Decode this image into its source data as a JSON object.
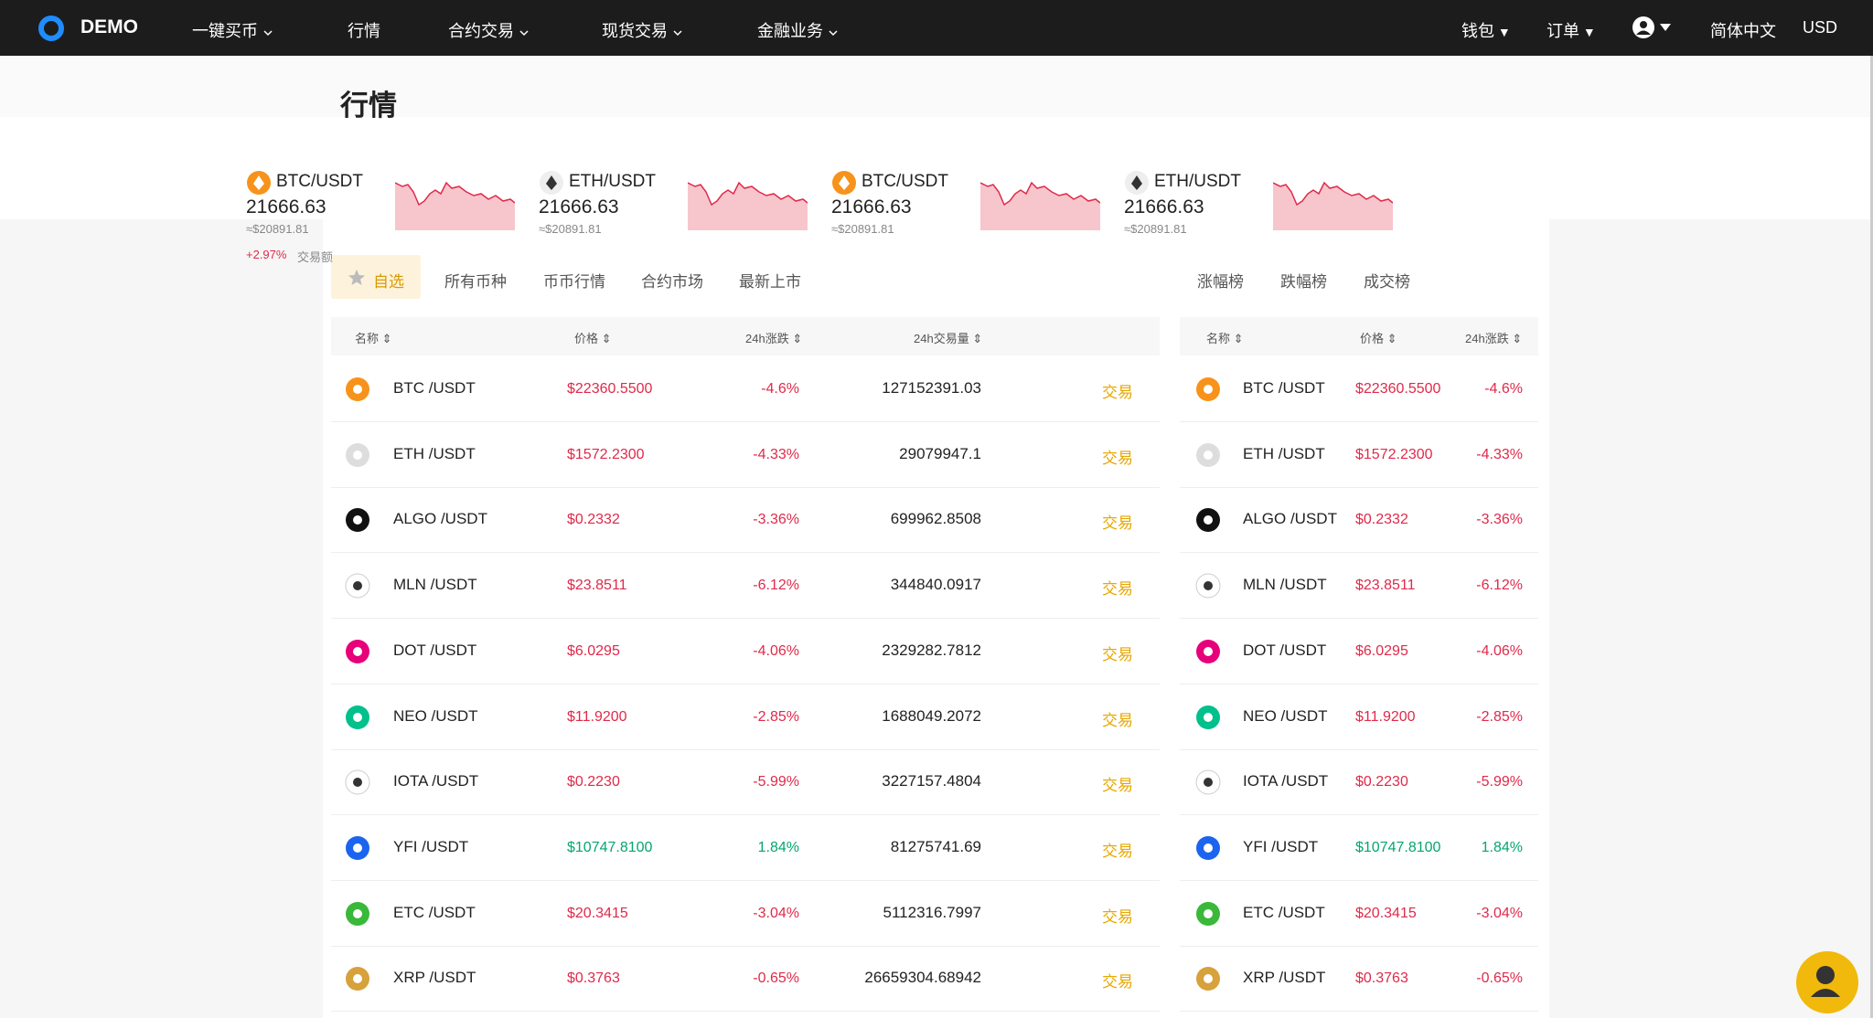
{
  "nav": {
    "logo": "DEMO",
    "items": [
      "一键买币",
      "行情",
      "合约交易",
      "现货交易",
      "金融业务"
    ],
    "right": [
      "钱包",
      "订单",
      "简体中文",
      "USD"
    ]
  },
  "page_title": "行情",
  "tickers": [
    {
      "pair": "BTC/USDT",
      "price": "21666.63",
      "usd": "≈$20891.81",
      "change": "+2.97%",
      "vol_label": "交易额"
    },
    {
      "pair": "ETH/USDT",
      "price": "21666.63",
      "usd": "≈$20891.81"
    },
    {
      "pair": "BTC/USDT",
      "price": "21666.63",
      "usd": "≈$20891.81"
    },
    {
      "pair": "ETH/USDT",
      "price": "21666.63",
      "usd": "≈$20891.81"
    }
  ],
  "tabs": [
    "自选",
    "所有币种",
    "币币行情",
    "合约市场",
    "最新上市"
  ],
  "rank_tabs": [
    "涨幅榜",
    "跌幅榜",
    "成交榜"
  ],
  "table": {
    "headers": [
      "名称",
      "价格",
      "24h涨跌",
      "24h交易量"
    ],
    "action": "交易",
    "rows": [
      [
        "BTC /USDT",
        "$22360.5500",
        "-4.6%",
        "127152391.03"
      ],
      [
        "ETH /USDT",
        "$1572.2300",
        "-4.33%",
        "29079947.1"
      ],
      [
        "ALGO /USDT",
        "$0.2332",
        "-3.36%",
        "699962.8508"
      ],
      [
        "MLN /USDT",
        "$23.8511",
        "-6.12%",
        "344840.0917"
      ],
      [
        "DOT /USDT",
        "$6.0295",
        "-4.06%",
        "2329282.7812"
      ],
      [
        "NEO /USDT",
        "$11.9200",
        "-2.85%",
        "1688049.2072"
      ],
      [
        "IOTA /USDT",
        "$0.2230",
        "-5.99%",
        "3227157.4804"
      ],
      [
        "YFI /USDT",
        "$10747.8100",
        "1.84%",
        "81275741.69"
      ],
      [
        "ETC /USDT",
        "$20.3415",
        "-3.04%",
        "5112316.7997"
      ],
      [
        "XRP /USDT",
        "$0.3763",
        "-0.65%",
        "26659304.68942"
      ]
    ]
  }
}
